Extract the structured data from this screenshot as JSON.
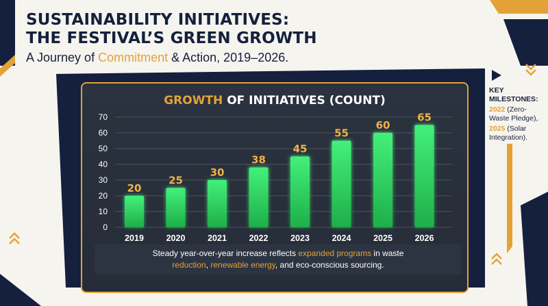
{
  "header": {
    "title_line1": "SUSTAINABILITY INITIATIVES:",
    "title_line2": "THE FESTIVAL’S GREEN GROWTH",
    "subtitle_pre": "A Journey of ",
    "subtitle_accent": "Commitment",
    "subtitle_post": " & Action, 2019–2026."
  },
  "chart_data": {
    "type": "bar",
    "title_highlight": "GROWTH",
    "title_rest": " OF INITIATIVES (COUNT)",
    "categories": [
      "2019",
      "2020",
      "2021",
      "2022",
      "2023",
      "2024",
      "2025",
      "2026"
    ],
    "values": [
      20,
      25,
      30,
      38,
      45,
      55,
      60,
      65
    ],
    "yticks": [
      "0",
      "10",
      "20",
      "30",
      "40",
      "50",
      "60",
      "70"
    ],
    "ylim": [
      0,
      70
    ],
    "grid": true,
    "xlabel": "",
    "ylabel": "",
    "colors": {
      "bar": "#39e26b",
      "value_label": "#f0b243",
      "grid": "#4a5261",
      "tick": "#ffffff"
    }
  },
  "caption": {
    "pre": "Steady year-over-year increase reflects ",
    "hl1": "expanded programs",
    "mid1": " in waste",
    "hl2": "reduction",
    "mid2": ", ",
    "hl3": "renewable energy",
    "post": ", and eco-conscious sourcing."
  },
  "milestones": {
    "heading": "KEY MILESTONES:",
    "items": [
      {
        "year": "2022",
        "text": " (Zero-Waste Pledge),"
      },
      {
        "year": "2025",
        "text": " (Solar Integration)."
      }
    ]
  },
  "colors": {
    "navy": "#14203d",
    "gold": "#e3a237",
    "panel": "#282f3b",
    "background": "#f6f4ee"
  }
}
